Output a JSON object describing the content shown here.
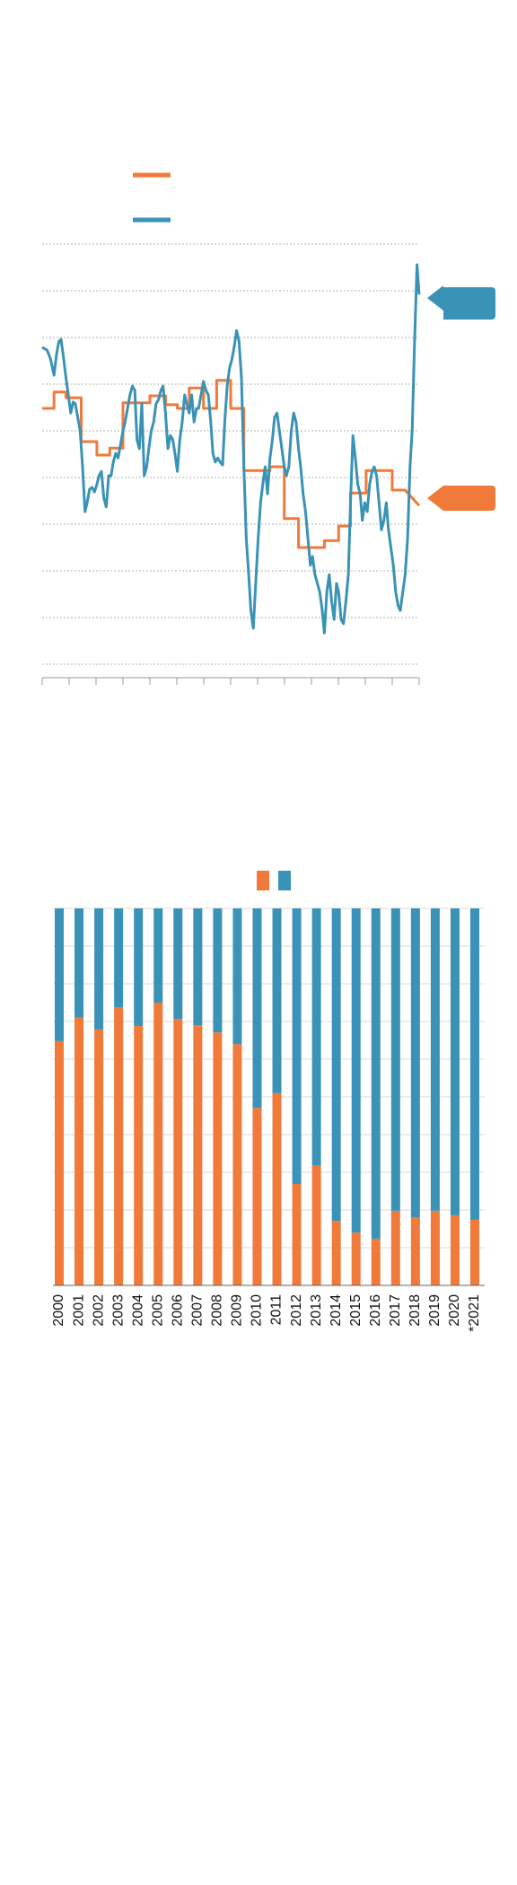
{
  "chart_data": [
    {
      "type": "line",
      "xlim": [
        0,
        14
      ],
      "xticks": [
        0,
        1,
        2,
        3,
        4,
        5,
        6,
        7,
        8,
        9,
        10,
        11,
        12,
        13,
        14
      ],
      "ylim": [
        0,
        9
      ],
      "yticks": [
        0,
        1,
        2,
        3,
        4,
        5,
        6,
        7,
        8,
        9
      ],
      "grid": true,
      "series": [
        {
          "color": "#ef7a3a",
          "x": [
            0,
            0.44,
            0.44,
            0.88,
            0.88,
            1.45,
            1.45,
            2.03,
            2.03,
            2.51,
            2.51,
            3.0,
            3.0,
            4.0,
            4.0,
            4.58,
            4.58,
            5.02,
            5.02,
            5.46,
            5.46,
            5.99,
            5.99,
            6.48,
            6.48,
            7.0,
            7.0,
            7.49,
            7.49,
            8.46,
            8.46,
            8.99,
            8.99,
            9.52,
            9.52,
            10.48,
            10.48,
            11.01,
            11.01,
            11.45,
            11.45,
            12.03,
            12.03,
            13.0,
            13.0,
            13.48,
            14.0
          ],
          "values": [
            5.48,
            5.48,
            5.83,
            5.83,
            5.71,
            5.71,
            4.77,
            4.77,
            4.48,
            4.48,
            4.63,
            4.63,
            5.6,
            5.6,
            5.75,
            5.75,
            5.56,
            5.56,
            5.48,
            5.48,
            5.92,
            5.92,
            5.48,
            5.48,
            6.08,
            6.08,
            5.48,
            5.48,
            4.15,
            4.15,
            4.23,
            4.23,
            3.12,
            3.12,
            2.5,
            2.5,
            2.65,
            2.65,
            2.96,
            2.96,
            3.67,
            3.67,
            4.15,
            4.15,
            3.73,
            3.73,
            3.4
          ]
        },
        {
          "color": "#3a92b6",
          "x": [
            0,
            0.18,
            0.31,
            0.44,
            0.53,
            0.62,
            0.7,
            0.79,
            0.88,
            0.97,
            1.06,
            1.15,
            1.23,
            1.32,
            1.41,
            1.5,
            1.59,
            1.67,
            1.76,
            1.85,
            1.94,
            2.03,
            2.11,
            2.2,
            2.29,
            2.38,
            2.47,
            2.56,
            2.64,
            2.73,
            2.82,
            2.91,
            3.0,
            3.08,
            3.17,
            3.26,
            3.35,
            3.44,
            3.52,
            3.61,
            3.7,
            3.79,
            3.88,
            3.96,
            4.05,
            4.14,
            4.23,
            4.32,
            4.41,
            4.49,
            4.58,
            4.67,
            4.76,
            4.85,
            4.93,
            5.02,
            5.11,
            5.2,
            5.29,
            5.37,
            5.46,
            5.55,
            5.64,
            5.73,
            5.81,
            5.9,
            5.99,
            6.08,
            6.17,
            6.26,
            6.34,
            6.43,
            6.52,
            6.61,
            6.7,
            6.78,
            6.87,
            6.96,
            7.05,
            7.14,
            7.22,
            7.31,
            7.4,
            7.49,
            7.58,
            7.67,
            7.75,
            7.84,
            7.93,
            8.02,
            8.11,
            8.19,
            8.28,
            8.37,
            8.46,
            8.55,
            8.63,
            8.72,
            8.81,
            8.9,
            8.99,
            9.07,
            9.16,
            9.25,
            9.34,
            9.43,
            9.52,
            9.6,
            9.69,
            9.78,
            9.87,
            9.96,
            10.04,
            10.13,
            10.22,
            10.31,
            10.4,
            10.48,
            10.57,
            10.66,
            10.75,
            10.84,
            10.93,
            11.01,
            11.1,
            11.19,
            11.28,
            11.37,
            11.45,
            11.54,
            11.63,
            11.72,
            11.81,
            11.89,
            11.98,
            12.07,
            12.16,
            12.25,
            12.33,
            12.42,
            12.51,
            12.6,
            12.69,
            12.78,
            12.86,
            12.95,
            13.04,
            13.13,
            13.22,
            13.3,
            13.39,
            13.48,
            13.57,
            13.66,
            13.74,
            13.83,
            13.92,
            14.0
          ],
          "values": [
            6.79,
            6.73,
            6.54,
            6.19,
            6.63,
            6.92,
            6.96,
            6.58,
            6.15,
            5.77,
            5.38,
            5.62,
            5.58,
            5.29,
            5.0,
            4.23,
            3.27,
            3.46,
            3.75,
            3.79,
            3.69,
            3.85,
            4.04,
            4.13,
            3.56,
            3.37,
            4.04,
            4.04,
            4.33,
            4.52,
            4.42,
            4.71,
            5.0,
            5.19,
            5.48,
            5.77,
            5.96,
            5.87,
            4.81,
            4.62,
            5.58,
            4.04,
            4.23,
            4.62,
            5.0,
            5.19,
            5.58,
            5.67,
            5.87,
            5.96,
            5.38,
            4.62,
            4.9,
            4.81,
            4.52,
            4.13,
            4.81,
            5.19,
            5.77,
            5.58,
            5.38,
            5.77,
            5.19,
            5.48,
            5.48,
            5.77,
            6.06,
            5.87,
            5.77,
            5.19,
            4.52,
            4.33,
            4.42,
            4.33,
            4.27,
            5.19,
            5.96,
            6.35,
            6.54,
            6.83,
            7.15,
            6.92,
            6.15,
            4.23,
            2.69,
            1.92,
            1.15,
            0.77,
            1.73,
            2.69,
            3.46,
            3.85,
            4.23,
            3.65,
            4.42,
            4.81,
            5.29,
            5.38,
            5.0,
            4.62,
            4.23,
            4.04,
            4.23,
            5.0,
            5.38,
            5.19,
            4.62,
            4.23,
            3.65,
            3.27,
            2.69,
            2.12,
            2.31,
            1.92,
            1.73,
            1.54,
            1.15,
            0.67,
            1.54,
            1.92,
            1.35,
            0.96,
            1.73,
            1.54,
            0.96,
            0.87,
            1.35,
            1.92,
            3.46,
            4.9,
            4.42,
            3.85,
            3.65,
            3.08,
            3.46,
            3.27,
            3.85,
            4.13,
            4.23,
            4.04,
            3.46,
            2.88,
            3.08,
            3.46,
            2.88,
            2.5,
            2.12,
            1.54,
            1.25,
            1.15,
            1.54,
            1.92,
            2.69,
            4.23,
            5.0,
            6.92,
            8.56,
            7.92
          ]
        }
      ]
    },
    {
      "type": "stacked_bar",
      "ylim": [
        0,
        100
      ],
      "yticks": [
        0,
        10,
        20,
        30,
        40,
        50,
        60,
        70,
        80,
        90,
        100
      ],
      "grid": true,
      "categories": [
        "2000",
        "2001",
        "2002",
        "2003",
        "2004",
        "2005",
        "2006",
        "2007",
        "2008",
        "2009",
        "2010",
        "2011",
        "2012",
        "2013",
        "2014",
        "2015",
        "2016",
        "2017",
        "2018",
        "2019",
        "2020",
        "*2021"
      ],
      "series": [
        {
          "color": "#ef7a3a",
          "values": [
            64.8,
            71,
            67.9,
            73.8,
            68.8,
            75,
            70.7,
            69,
            67.1,
            64,
            47.1,
            51,
            26.9,
            31.9,
            17.1,
            14,
            12.4,
            19.8,
            18.1,
            19.8,
            18.6,
            17.4
          ]
        },
        {
          "color": "#3a92b6",
          "values": [
            35.2,
            29,
            32.1,
            26.2,
            31.2,
            25,
            29.3,
            31,
            32.9,
            36,
            52.9,
            49,
            73.1,
            68.1,
            82.9,
            86,
            87.6,
            80.2,
            81.9,
            80.2,
            81.4,
            82.6
          ]
        }
      ]
    }
  ]
}
